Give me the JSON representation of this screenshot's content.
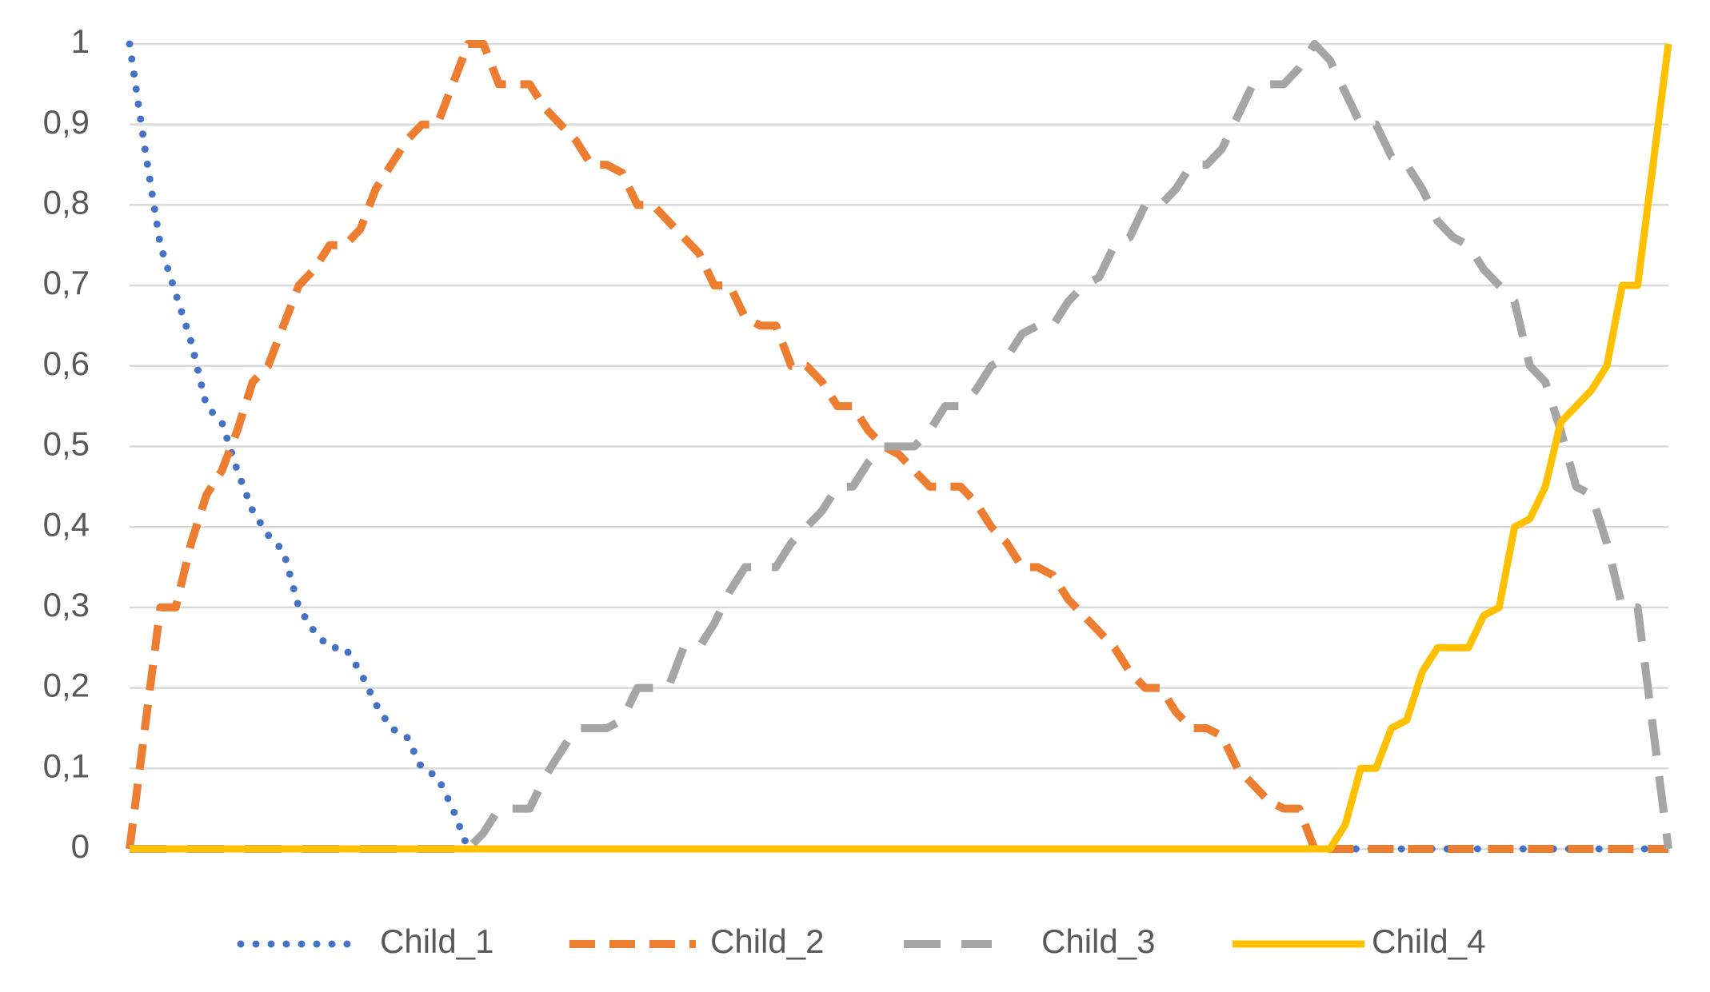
{
  "chart_data": {
    "type": "line",
    "legend": "bottom",
    "grid": true,
    "ylim": [
      0,
      1
    ],
    "yticks": [
      0,
      {
        "value": 0.1,
        "label": "0,1"
      },
      {
        "value": 0.2,
        "label": "0,2"
      },
      {
        "value": 0.3,
        "label": "0,3"
      },
      {
        "value": 0.4,
        "label": "0,4"
      },
      {
        "value": 0.5,
        "label": "0,5"
      },
      {
        "value": 0.6,
        "label": "0,6"
      },
      {
        "value": 0.7,
        "label": "0,7"
      },
      {
        "value": 0.8,
        "label": "0,8"
      },
      {
        "value": 0.9,
        "label": "0,9"
      },
      1
    ],
    "categories": [
      null,
      null,
      null,
      null,
      null,
      null,
      null,
      null,
      null,
      null,
      null,
      null,
      null,
      null,
      null,
      null,
      null,
      null,
      null,
      null,
      null,
      null,
      null,
      null,
      null,
      null,
      null,
      null,
      null,
      null,
      null,
      null,
      null,
      null,
      null,
      null,
      null,
      null,
      null,
      null,
      null,
      null,
      null,
      null,
      null,
      null,
      null,
      null,
      null,
      null,
      null,
      null,
      null,
      null,
      null,
      null,
      null,
      null,
      null,
      null,
      null,
      null,
      null,
      null,
      null,
      null,
      null,
      null,
      null,
      null,
      null,
      null,
      null,
      null,
      null,
      null,
      null,
      null,
      null,
      null,
      null,
      null,
      null,
      null,
      null,
      null,
      null,
      null,
      null,
      null,
      null,
      null,
      null,
      null,
      null,
      null,
      null,
      null,
      null,
      null,
      null
    ],
    "series": [
      {
        "name": "Child_1",
        "color": "#4472c4",
        "line_style": "dotted",
        "values": [
          1,
          0.87,
          0.75,
          0.69,
          0.63,
          0.55,
          0.53,
          0.47,
          0.42,
          0.39,
          0.37,
          0.3,
          0.27,
          0.25,
          0.25,
          0.22,
          0.18,
          0.15,
          0.14,
          0.1,
          0.09,
          0.05,
          0,
          0,
          0,
          0,
          0,
          0,
          0,
          0,
          0,
          0,
          0,
          0,
          0,
          0,
          0,
          0,
          0,
          0,
          0,
          0,
          0,
          0,
          0,
          0,
          0,
          0,
          0,
          0,
          0,
          0,
          0,
          0,
          0,
          0,
          0,
          0,
          0,
          0,
          0,
          0,
          0,
          0,
          0,
          0,
          0,
          0,
          0,
          0,
          0,
          0,
          0,
          0,
          0,
          0,
          0,
          0,
          0,
          0,
          0,
          0,
          0,
          0,
          0,
          0,
          0,
          0,
          0,
          0,
          0,
          0,
          0,
          0,
          0,
          0,
          0,
          0,
          0,
          0,
          0
        ]
      },
      {
        "name": "Child_2",
        "color": "#ed7d31",
        "line_style": "dashed",
        "values": [
          0,
          0.15,
          0.3,
          0.3,
          0.38,
          0.44,
          0.47,
          0.52,
          0.58,
          0.6,
          0.65,
          0.7,
          0.72,
          0.75,
          0.75,
          0.77,
          0.82,
          0.85,
          0.88,
          0.9,
          0.9,
          0.95,
          1,
          1,
          0.95,
          0.95,
          0.95,
          0.92,
          0.9,
          0.88,
          0.85,
          0.85,
          0.84,
          0.8,
          0.8,
          0.78,
          0.76,
          0.74,
          0.7,
          0.7,
          0.66,
          0.65,
          0.65,
          0.6,
          0.6,
          0.58,
          0.55,
          0.55,
          0.52,
          0.5,
          0.49,
          0.47,
          0.45,
          0.45,
          0.45,
          0.43,
          0.4,
          0.38,
          0.35,
          0.35,
          0.34,
          0.31,
          0.29,
          0.27,
          0.25,
          0.22,
          0.2,
          0.2,
          0.17,
          0.15,
          0.15,
          0.14,
          0.1,
          0.08,
          0.06,
          0.05,
          0.05,
          0,
          0,
          0,
          0,
          0,
          0,
          0,
          0,
          0,
          0,
          0,
          0,
          0,
          0,
          0,
          0,
          0,
          0,
          0,
          0,
          0,
          0,
          0,
          0
        ]
      },
      {
        "name": "Child_3",
        "color": "#a5a5a5",
        "line_style": "long-dashed",
        "values": [
          0,
          0,
          0,
          0,
          0,
          0,
          0,
          0,
          0,
          0,
          0,
          0,
          0,
          0,
          0,
          0,
          0,
          0,
          0,
          0,
          0,
          0,
          0,
          0.02,
          0.05,
          0.05,
          0.05,
          0.09,
          0.12,
          0.15,
          0.15,
          0.15,
          0.16,
          0.2,
          0.2,
          0.2,
          0.25,
          0.25,
          0.28,
          0.32,
          0.35,
          0.35,
          0.35,
          0.38,
          0.4,
          0.42,
          0.45,
          0.45,
          0.48,
          0.5,
          0.5,
          0.5,
          0.52,
          0.55,
          0.55,
          0.57,
          0.6,
          0.61,
          0.64,
          0.65,
          0.65,
          0.68,
          0.7,
          0.71,
          0.75,
          0.76,
          0.8,
          0.8,
          0.82,
          0.85,
          0.85,
          0.87,
          0.91,
          0.95,
          0.95,
          0.95,
          0.97,
          1,
          0.98,
          0.94,
          0.9,
          0.9,
          0.86,
          0.85,
          0.82,
          0.78,
          0.76,
          0.75,
          0.72,
          0.7,
          0.68,
          0.6,
          0.58,
          0.52,
          0.45,
          0.44,
          0.38,
          0.3,
          0.3,
          0.15,
          0
        ]
      },
      {
        "name": "Child_4",
        "color": "#ffc000",
        "line_style": "solid",
        "values": [
          0,
          0,
          0,
          0,
          0,
          0,
          0,
          0,
          0,
          0,
          0,
          0,
          0,
          0,
          0,
          0,
          0,
          0,
          0,
          0,
          0,
          0,
          0,
          0,
          0,
          0,
          0,
          0,
          0,
          0,
          0,
          0,
          0,
          0,
          0,
          0,
          0,
          0,
          0,
          0,
          0,
          0,
          0,
          0,
          0,
          0,
          0,
          0,
          0,
          0,
          0,
          0,
          0,
          0,
          0,
          0,
          0,
          0,
          0,
          0,
          0,
          0,
          0,
          0,
          0,
          0,
          0,
          0,
          0,
          0,
          0,
          0,
          0,
          0,
          0,
          0,
          0,
          0,
          0,
          0.03,
          0.1,
          0.1,
          0.15,
          0.16,
          0.22,
          0.25,
          0.25,
          0.25,
          0.29,
          0.3,
          0.4,
          0.41,
          0.45,
          0.53,
          0.55,
          0.57,
          0.6,
          0.7,
          0.7,
          0.85,
          1
        ]
      }
    ]
  }
}
